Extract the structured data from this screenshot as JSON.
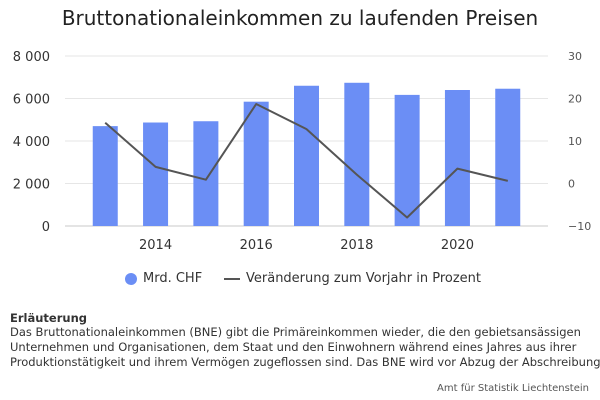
{
  "chart_data": {
    "type": "bar",
    "title": "Bruttonationaleinkommen zu laufenden Preisen",
    "x": [
      2013,
      2014,
      2015,
      2016,
      2017,
      2018,
      2019,
      2020,
      2021
    ],
    "x_tick_labels": [
      "2014",
      "2016",
      "2018",
      "2020"
    ],
    "y_left_ticks": [
      "0",
      "2 000",
      "4 000",
      "6 000",
      "8 000"
    ],
    "y_right_ticks": [
      "−10",
      "0",
      "10",
      "20",
      "30"
    ],
    "ylim_left": [
      0,
      8000
    ],
    "ylim_right": [
      -10,
      30
    ],
    "grid": true,
    "legend_position": "bottom",
    "series": [
      {
        "name": "Mrd. CHF",
        "type": "bar",
        "axis": "left",
        "color": "#6b8ef5",
        "values": [
          4700,
          4870,
          4930,
          5850,
          6600,
          6740,
          6170,
          6400,
          6460
        ]
      },
      {
        "name": "Veränderung zum Vorjahr in Prozent",
        "type": "line",
        "axis": "right",
        "color": "#555555",
        "values": [
          14.3,
          3.9,
          0.9,
          18.7,
          12.8,
          2.1,
          -8.0,
          3.5,
          0.6
        ]
      }
    ]
  },
  "note": {
    "heading": "Erläuterung",
    "lines": [
      "Das Bruttonationaleinkommen (BNE) gibt die Primäreinkommen wieder, die den gebietsansässigen",
      "Unternehmen und Organisationen, dem Staat und den Einwohnern während eines Jahres aus ihrer",
      "Produktionstätigkeit und ihrem Vermögen zugeflossen sind. Das BNE wird vor Abzug der Abschreibungen"
    ]
  },
  "source": "Amt für Statistik Liechtenstein"
}
